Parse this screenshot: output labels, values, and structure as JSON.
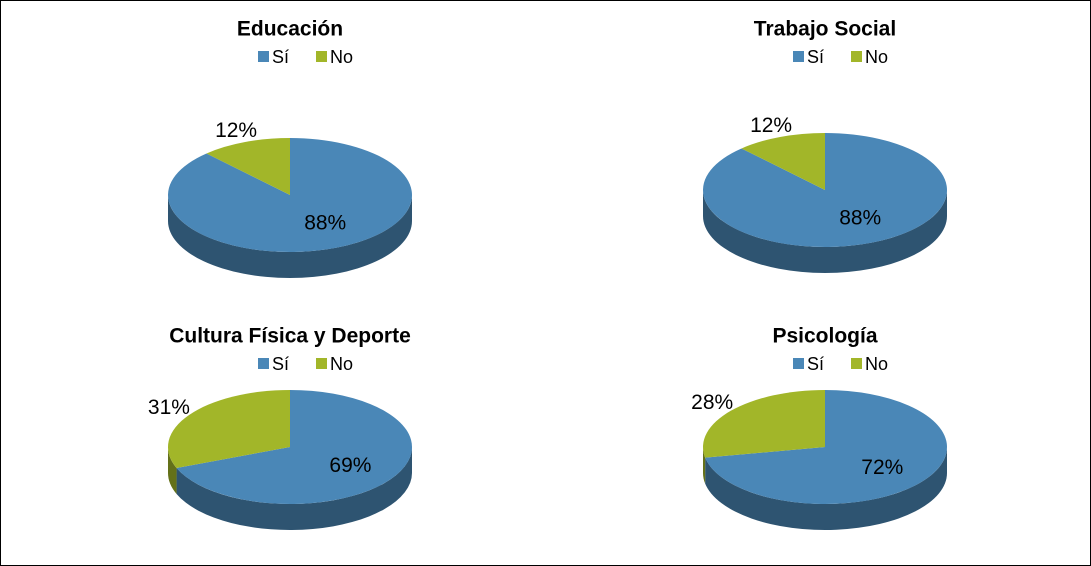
{
  "chart_data": [
    {
      "type": "pie",
      "title": "Educación",
      "categories": [
        "Sí",
        "No"
      ],
      "values": [
        88,
        12
      ],
      "value_labels": [
        "88%",
        "12%"
      ],
      "colors": [
        "#4a87b7",
        "#a2b629"
      ]
    },
    {
      "type": "pie",
      "title": "Trabajo Social",
      "categories": [
        "Sí",
        "No"
      ],
      "values": [
        88,
        12
      ],
      "value_labels": [
        "88%",
        "12%"
      ],
      "colors": [
        "#4a87b7",
        "#a2b629"
      ]
    },
    {
      "type": "pie",
      "title": "Cultura Física y Deporte",
      "categories": [
        "Sí",
        "No"
      ],
      "values": [
        69,
        31
      ],
      "value_labels": [
        "69%",
        "31%"
      ],
      "colors": [
        "#4a87b7",
        "#a2b629"
      ]
    },
    {
      "type": "pie",
      "title": "Psicología",
      "categories": [
        "Sí",
        "No"
      ],
      "values": [
        72,
        28
      ],
      "value_labels": [
        "72%",
        "28%"
      ],
      "colors": [
        "#4a87b7",
        "#a2b629"
      ]
    }
  ]
}
